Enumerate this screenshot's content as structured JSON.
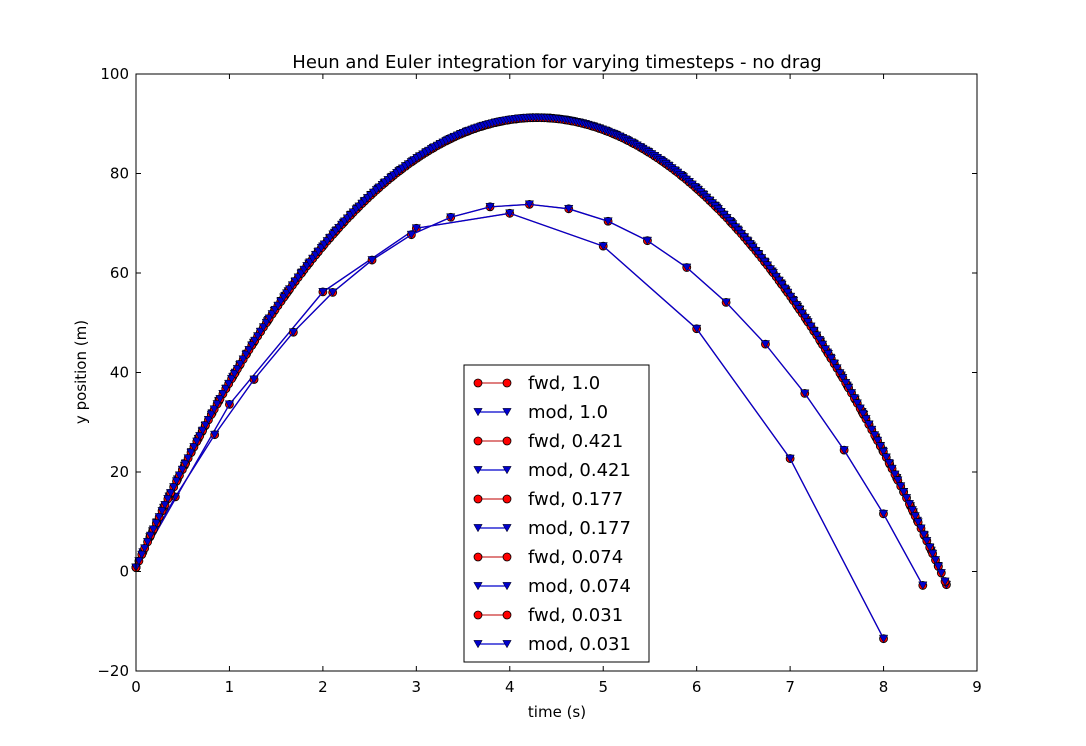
{
  "chart_data": {
    "type": "line",
    "title": "Heun and Euler integration for varying timesteps - no drag",
    "xlabel": "time (s)",
    "ylabel": "y position (m)",
    "xlim": [
      0,
      9
    ],
    "ylim": [
      -20,
      100
    ],
    "xticks": [
      "0",
      "1",
      "2",
      "3",
      "4",
      "5",
      "6",
      "7",
      "8",
      "9"
    ],
    "yticks": [
      "−20",
      "0",
      "20",
      "40",
      "60",
      "80",
      "100"
    ],
    "grid": false,
    "legend_position": "lower-center",
    "colors": {
      "fwd": "#ff0000",
      "mod": "#0000cc",
      "fwd_line": "#cc3333",
      "mod_line": "#0000cc",
      "marker_edge": "#000000"
    },
    "series": [
      {
        "name": "fwd, 1.0",
        "marker": "circle",
        "color": "#ff0000",
        "dt": 1.0,
        "x": [
          0,
          1,
          2,
          3,
          4,
          5,
          6,
          7,
          8
        ],
        "y": [
          0.8,
          33.6,
          56.2,
          69.0,
          72.0,
          65.4,
          48.8,
          22.7,
          -13.5
        ]
      },
      {
        "name": "mod, 1.0",
        "marker": "triangle-down",
        "color": "#0000cc",
        "dt": 1.0,
        "x": [
          0,
          1,
          2,
          3,
          4,
          5,
          6,
          7,
          8
        ],
        "y": [
          0.8,
          33.6,
          56.2,
          69.0,
          72.0,
          65.4,
          48.8,
          22.7,
          -13.5
        ]
      },
      {
        "name": "fwd, 0.421",
        "marker": "circle",
        "color": "#ff0000",
        "dt": 0.421,
        "x": [
          0,
          0.421,
          0.842,
          1.263,
          1.684,
          2.105,
          2.526,
          2.947,
          3.368,
          3.789,
          4.21,
          4.631,
          5.052,
          5.473,
          5.894,
          6.315,
          6.736,
          7.157,
          7.578,
          7.999,
          8.42
        ],
        "y": [
          0.8,
          15.0,
          27.5,
          38.6,
          48.1,
          56.1,
          62.6,
          67.7,
          71.2,
          73.3,
          73.8,
          72.9,
          70.4,
          66.5,
          61.1,
          54.1,
          45.7,
          35.8,
          24.4,
          11.6,
          -2.8
        ]
      },
      {
        "name": "mod, 0.421",
        "marker": "triangle-down",
        "color": "#0000cc",
        "dt": 0.421,
        "x": [
          0,
          0.421,
          0.842,
          1.263,
          1.684,
          2.105,
          2.526,
          2.947,
          3.368,
          3.789,
          4.21,
          4.631,
          5.052,
          5.473,
          5.894,
          6.315,
          6.736,
          7.157,
          7.578,
          7.999,
          8.42
        ],
        "y": [
          0.8,
          15.0,
          27.5,
          38.6,
          48.1,
          56.1,
          62.6,
          67.7,
          71.2,
          73.3,
          73.8,
          72.9,
          70.4,
          66.5,
          61.1,
          54.1,
          45.7,
          35.8,
          24.4,
          11.6,
          -2.8
        ]
      },
      {
        "name": "fwd, 0.177",
        "marker": "circle",
        "color": "#ff0000",
        "dt": 0.177
      },
      {
        "name": "mod, 0.177",
        "marker": "triangle-down",
        "color": "#0000cc",
        "dt": 0.177
      },
      {
        "name": "fwd, 0.074",
        "marker": "circle",
        "color": "#ff0000",
        "dt": 0.074
      },
      {
        "name": "mod, 0.074",
        "marker": "triangle-down",
        "color": "#0000cc",
        "dt": 0.074
      },
      {
        "name": "fwd, 0.031",
        "marker": "circle",
        "color": "#ff0000",
        "dt": 0.031
      },
      {
        "name": "mod, 0.031",
        "marker": "triangle-down",
        "color": "#0000cc",
        "dt": 0.031
      }
    ]
  }
}
